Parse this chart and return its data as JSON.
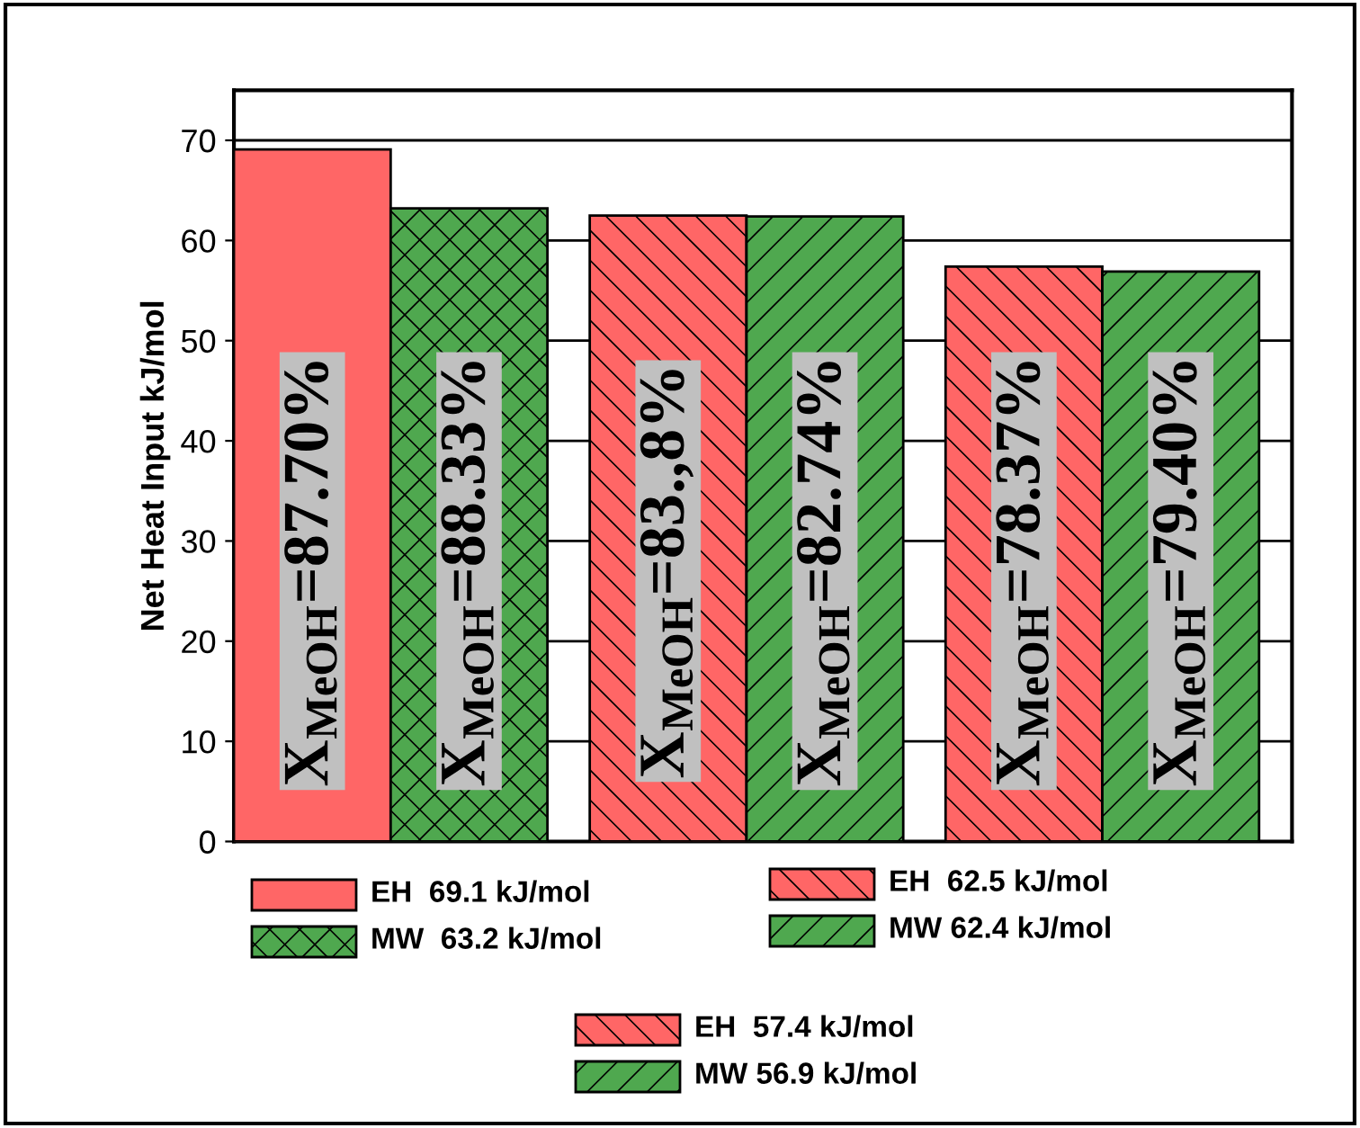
{
  "chart_data": {
    "type": "bar",
    "ylabel": "Net Heat Input kJ/mol",
    "categories": [
      null,
      null,
      null,
      null,
      null,
      null
    ],
    "ylim": [
      0,
      75
    ],
    "yticks": [
      0,
      10,
      20,
      30,
      40,
      50,
      60,
      70
    ],
    "grid": "y",
    "legend": "bottom",
    "series": [
      {
        "name": "EH  69.1 kJ/mol",
        "color": "#ff6666",
        "values": [
          69.1,
          null,
          null,
          null,
          null,
          null
        ]
      },
      {
        "name": "MW  63.2 kJ/mol",
        "color": "#4fa84f",
        "values": [
          null,
          63.2,
          null,
          null,
          null,
          null
        ]
      },
      {
        "name": "EH  62.5 kJ/mol",
        "color": "#ff6666",
        "values": [
          null,
          null,
          62.5,
          null,
          null,
          null
        ]
      },
      {
        "name": "MW 62.4 kJ/mol",
        "color": "#4fa84f",
        "values": [
          null,
          null,
          null,
          62.4,
          null,
          null
        ]
      },
      {
        "name": "EH  57.4 kJ/mol",
        "color": "#ff6666",
        "values": [
          null,
          null,
          null,
          null,
          57.4,
          null
        ]
      },
      {
        "name": "MW 56.9 kJ/mol",
        "color": "#4fa84f",
        "values": [
          null,
          null,
          null,
          null,
          null,
          56.9
        ]
      }
    ],
    "annotations": [
      "X$_{MeOH}$=87.70%",
      "X$_{MeOH}$=88.33%",
      "X$_{MeOH}$=83.,8%",
      "X$_{MeOH}$=82.74%",
      "X$_{MeOH}$=78.37%",
      "X$_{MeOH}$=79.40%"
    ]
  }
}
